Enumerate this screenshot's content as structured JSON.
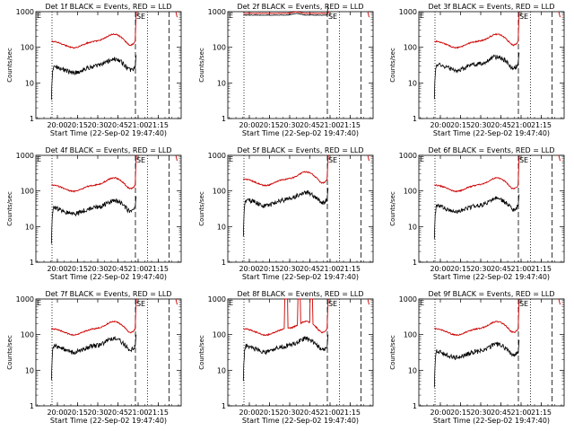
{
  "figure": {
    "background": "#ffffff",
    "event_color": "#000000",
    "lld_color": "#cc0000"
  },
  "chart_data": {
    "type": "line",
    "y_scale": "log",
    "ylim": [
      1,
      1000
    ],
    "xlim_labels": [
      "20:00",
      "20:15",
      "20:30",
      "20:45",
      "21:00",
      "21:15"
    ],
    "x_ticks_minutes": [
      0,
      15,
      30,
      45,
      60,
      75
    ],
    "xlim_minutes": [
      -16,
      92
    ],
    "y_tick_labels": [
      "1",
      "10",
      "100",
      "1000"
    ],
    "y_ticks": [
      1,
      10,
      100,
      1000
    ],
    "ylabel": "Counts/sec",
    "xlabel": "Start Time (22-Sep-02 19:47:40)",
    "markers": {
      "S": 58,
      "E": 62,
      "dotted": [
        -4,
        67
      ],
      "dashed": [
        58,
        83
      ]
    },
    "panels": [
      {
        "title": "Det 1f BLACK = Events, RED = LLD",
        "event_base": 30,
        "lld_base": 150,
        "variant": "normal"
      },
      {
        "title": "Det 2f BLACK = Events, RED = LLD",
        "event_base": 800,
        "lld_base": 900,
        "variant": "high"
      },
      {
        "title": "Det 3f BLACK = Events, RED = LLD",
        "event_base": 35,
        "lld_base": 150,
        "variant": "normal"
      },
      {
        "title": "Det 4f BLACK = Events, RED = LLD",
        "event_base": 35,
        "lld_base": 150,
        "variant": "normal"
      },
      {
        "title": "Det 5f BLACK = Events, RED = LLD",
        "event_base": 60,
        "lld_base": 220,
        "variant": "normal"
      },
      {
        "title": "Det 6f BLACK = Events, RED = LLD",
        "event_base": 40,
        "lld_base": 150,
        "variant": "normal"
      },
      {
        "title": "Det 7f BLACK = Events, RED = LLD",
        "event_base": 50,
        "lld_base": 150,
        "variant": "normal"
      },
      {
        "title": "Det 8f BLACK = Events, RED = LLD",
        "event_base": 50,
        "lld_base": 150,
        "variant": "spike"
      },
      {
        "title": "Det 9f BLACK = Events, RED = LLD",
        "event_base": 35,
        "lld_base": 150,
        "variant": "normal"
      }
    ]
  }
}
